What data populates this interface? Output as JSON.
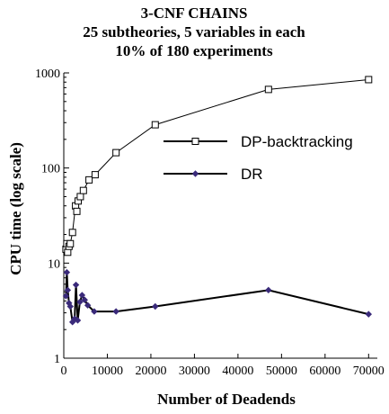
{
  "chart_data": {
    "type": "line",
    "title": [
      "3-CNF CHAINS",
      "25 subtheories, 5 variables in each",
      "10% of 180 experiments"
    ],
    "xlabel": "Number of Deadends",
    "ylabel": "CPU time (log scale)",
    "xlim": [
      0,
      72000
    ],
    "ylim": [
      1,
      1000
    ],
    "yscale": "log",
    "grid": false,
    "legend_position": "right",
    "x_ticks": [
      0,
      10000,
      20000,
      30000,
      40000,
      50000,
      60000,
      70000
    ],
    "x_tick_labels": [
      "0",
      "10000",
      "20000",
      "30000",
      "40000",
      "50000",
      "60000",
      "70000"
    ],
    "y_ticks": [
      1,
      10,
      100,
      1000
    ],
    "y_tick_labels": [
      "1",
      "10",
      "100",
      "1000"
    ],
    "series": [
      {
        "name": "DP-backtracking",
        "marker": "square",
        "color": "#000000",
        "x": [
          500,
          700,
          900,
          1200,
          1500,
          2000,
          2700,
          3000,
          3300,
          3800,
          4500,
          5800,
          7200,
          12000,
          21000,
          47000,
          70000
        ],
        "y": [
          14,
          16,
          13,
          15,
          16,
          21,
          40,
          35,
          45,
          50,
          58,
          75,
          85,
          145,
          285,
          670,
          850
        ]
      },
      {
        "name": "DR",
        "marker": "diamond",
        "color": "#000000",
        "marker_color": "#3a2a7a",
        "x": [
          500,
          700,
          900,
          1200,
          1500,
          2000,
          2500,
          2800,
          3200,
          3700,
          4200,
          4800,
          5500,
          7000,
          12000,
          21000,
          47000,
          70000
        ],
        "y": [
          4.5,
          8.0,
          5.2,
          3.8,
          3.5,
          2.4,
          2.6,
          5.9,
          2.5,
          3.9,
          4.6,
          4.1,
          3.6,
          3.1,
          3.1,
          3.5,
          5.2,
          2.9
        ]
      }
    ]
  }
}
